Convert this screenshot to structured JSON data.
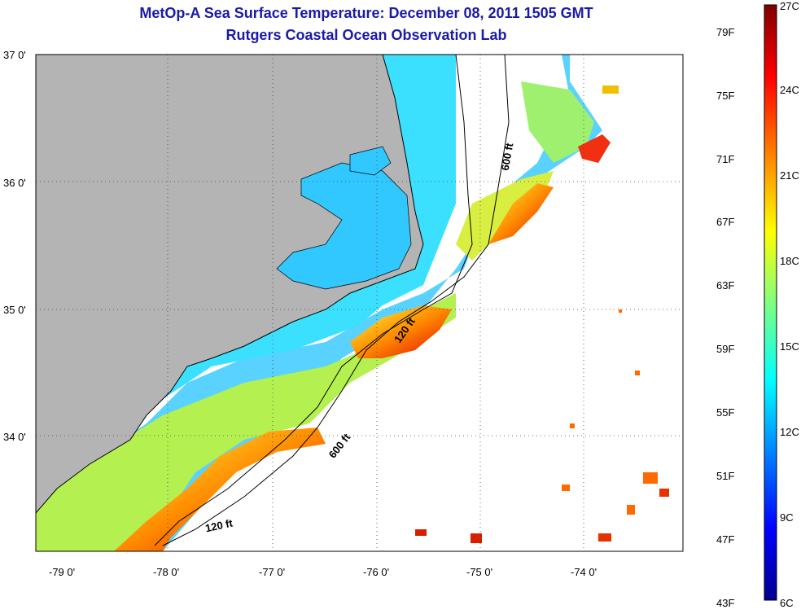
{
  "title": {
    "line1": "MetOp-A Sea Surface Temperature:  December 08, 2011 1505 GMT",
    "line2": "Rutgers Coastal Ocean Observation Lab"
  },
  "map": {
    "lat_labels": [
      "37 0'",
      "36 0'",
      "35 0'",
      "34 0'"
    ],
    "lon_labels": [
      "-79 0'",
      "-78 0'",
      "-77 0'",
      "-76 0'",
      "-75 0'",
      "-74 0'"
    ],
    "contours": [
      "600 ft",
      "120 ft",
      "600 ft",
      "120 ft"
    ],
    "colors": {
      "land": "#b4b4b4",
      "coast": "#000000"
    }
  },
  "colorbar": {
    "fahrenheit": [
      "79F",
      "75F",
      "71F",
      "67F",
      "63F",
      "59F",
      "55F",
      "51F",
      "47F",
      "43F"
    ],
    "celsius": [
      "27C",
      "24C",
      "21C",
      "18C",
      "15C",
      "12C",
      "9C",
      "6C"
    ],
    "colors": [
      "#7f0000",
      "#ff0000",
      "#ff8000",
      "#ffff00",
      "#80ff80",
      "#00ffff",
      "#0080ff",
      "#0000ff",
      "#00008f"
    ]
  }
}
